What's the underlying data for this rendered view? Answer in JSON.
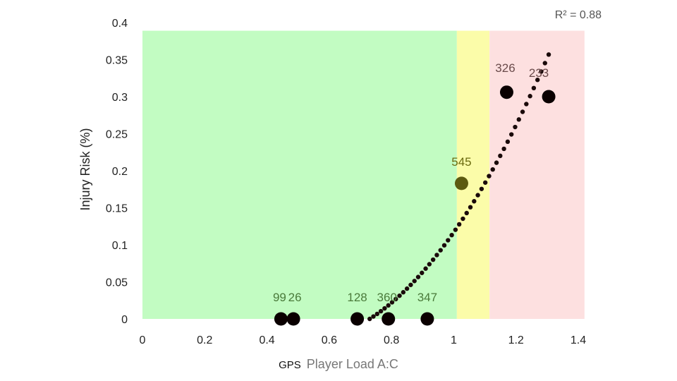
{
  "chart_data": {
    "type": "scatter",
    "xlabel_prefix": "GPS",
    "xlabel": "Player Load A:C",
    "ylabel": "Injury Risk (%)",
    "xlim": [
      0,
      1.4
    ],
    "ylim": [
      0,
      0.4
    ],
    "x_ticks": [
      "0",
      "0.2",
      "0.4",
      "0.6",
      "0.8",
      "1",
      "1.2",
      "1.4"
    ],
    "y_ticks": [
      "0",
      "0.05",
      "0.1",
      "0.15",
      "0.2",
      "0.25",
      "0.3",
      "0.35",
      "0.4"
    ],
    "annotation": "R² = 0.88",
    "zones": [
      {
        "from": 0,
        "to": 1.01,
        "color": "#c2fcc2"
      },
      {
        "from": 1.01,
        "to": 1.115,
        "color": "#fbfca9"
      },
      {
        "from": 1.115,
        "to": 1.42,
        "color": "#fde0e0"
      }
    ],
    "zone_top": 0.389,
    "points": [
      {
        "x": 0.445,
        "y": 0.0,
        "label": "99"
      },
      {
        "x": 0.485,
        "y": 0.0,
        "label": "26"
      },
      {
        "x": 0.69,
        "y": 0.0,
        "label": "128"
      },
      {
        "x": 0.79,
        "y": 0.0,
        "label": "360"
      },
      {
        "x": 0.915,
        "y": 0.0,
        "label": "347"
      },
      {
        "x": 1.025,
        "y": 0.183,
        "label": "545"
      },
      {
        "x": 1.17,
        "y": 0.306,
        "label": "326"
      },
      {
        "x": 1.305,
        "y": 0.3,
        "label": "233"
      }
    ],
    "point_color_dark": "#0a0000",
    "point_color_olive": "#5c5a10",
    "label_color_green": "#4a7a3a",
    "label_color_olive": "#6b6b10",
    "label_color_red": "#6a4a4a",
    "trend": {
      "type": "polynomial",
      "x_start": 0.73,
      "x_end": 1.305,
      "color": "#1a0a0a"
    }
  }
}
